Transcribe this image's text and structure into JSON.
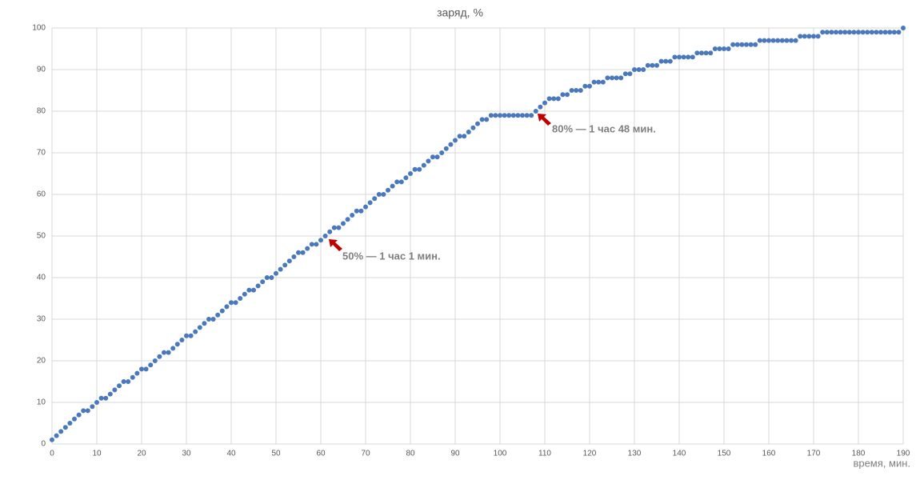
{
  "chart_data": {
    "type": "scatter",
    "title": "заряд, %",
    "x_label": "время, мин.",
    "annotations": [
      "50% — 1 час 1 мин.",
      "80% — 1 час 48 мин."
    ],
    "series": [
      {
        "color": "#4a78bd",
        "x": [
          0,
          1,
          2,
          3,
          4,
          5,
          6,
          7,
          8,
          9,
          10,
          11,
          12,
          13,
          14,
          15,
          16,
          17,
          18,
          19,
          20,
          21,
          22,
          23,
          24,
          25,
          26,
          27,
          28,
          29,
          30,
          31,
          32,
          33,
          34,
          35,
          36,
          37,
          38,
          39,
          40,
          41,
          42,
          43,
          44,
          45,
          46,
          47,
          48,
          49,
          50,
          51,
          52,
          53,
          54,
          55,
          56,
          57,
          58,
          59,
          60,
          61,
          62,
          63,
          64,
          65,
          66,
          67,
          68,
          69,
          70,
          71,
          72,
          73,
          74,
          75,
          76,
          77,
          78,
          79,
          80,
          81,
          82,
          83,
          84,
          85,
          86,
          87,
          88,
          89,
          90,
          91,
          92,
          93,
          94,
          95,
          96,
          97,
          98,
          99,
          100,
          101,
          102,
          103,
          104,
          105,
          106,
          107,
          108,
          109,
          110,
          111,
          112,
          113,
          114,
          115,
          116,
          117,
          118,
          119,
          120,
          121,
          122,
          123,
          124,
          125,
          126,
          127,
          128,
          129,
          130,
          131,
          132,
          133,
          134,
          135,
          136,
          137,
          138,
          139,
          140,
          141,
          142,
          143,
          144,
          145,
          146,
          147,
          148,
          149,
          150,
          151,
          152,
          153,
          154,
          155,
          156,
          157,
          158,
          159,
          160,
          161,
          162,
          163,
          164,
          165,
          166,
          167,
          168,
          169,
          170,
          171,
          172,
          173,
          174,
          175,
          176,
          177,
          178,
          179,
          180,
          181,
          182,
          183,
          184,
          185,
          186,
          187,
          188,
          189,
          190
        ],
        "values": [
          1,
          2,
          3,
          4,
          5,
          6,
          7,
          8,
          8,
          9,
          10,
          11,
          11,
          12,
          13,
          14,
          15,
          15,
          16,
          17,
          18,
          18,
          19,
          20,
          21,
          22,
          22,
          23,
          24,
          25,
          26,
          26,
          27,
          28,
          29,
          30,
          30,
          31,
          32,
          33,
          34,
          34,
          35,
          36,
          37,
          37,
          38,
          39,
          40,
          40,
          41,
          42,
          43,
          44,
          45,
          46,
          46,
          47,
          48,
          48,
          49,
          50,
          51,
          52,
          52,
          53,
          54,
          55,
          56,
          56,
          57,
          58,
          59,
          60,
          60,
          61,
          62,
          63,
          63,
          64,
          65,
          66,
          66,
          67,
          68,
          69,
          69,
          70,
          71,
          72,
          73,
          74,
          74,
          75,
          76,
          77,
          78,
          78,
          79,
          79,
          79,
          79,
          79,
          79,
          79,
          79,
          79,
          79,
          80,
          81,
          82,
          83,
          83,
          83,
          84,
          84,
          85,
          85,
          85,
          86,
          86,
          87,
          87,
          87,
          88,
          88,
          88,
          88,
          89,
          89,
          90,
          90,
          90,
          91,
          91,
          91,
          92,
          92,
          92,
          93,
          93,
          93,
          93,
          93,
          94,
          94,
          94,
          94,
          95,
          95,
          95,
          95,
          96,
          96,
          96,
          96,
          96,
          96,
          97,
          97,
          97,
          97,
          97,
          97,
          97,
          97,
          97,
          98,
          98,
          98,
          98,
          98,
          99,
          99,
          99,
          99,
          99,
          99,
          99,
          99,
          99,
          99,
          99,
          99,
          99,
          99,
          99,
          99,
          99,
          99,
          100
        ]
      }
    ],
    "xlim": [
      0,
      190
    ],
    "xticks": [
      0,
      10,
      20,
      30,
      40,
      50,
      60,
      70,
      80,
      90,
      100,
      110,
      120,
      130,
      140,
      150,
      160,
      170,
      180,
      190
    ],
    "ylim": [
      0,
      100
    ],
    "yticks": [
      0,
      10,
      20,
      30,
      40,
      50,
      60,
      70,
      80,
      90,
      100
    ],
    "grid": true
  }
}
